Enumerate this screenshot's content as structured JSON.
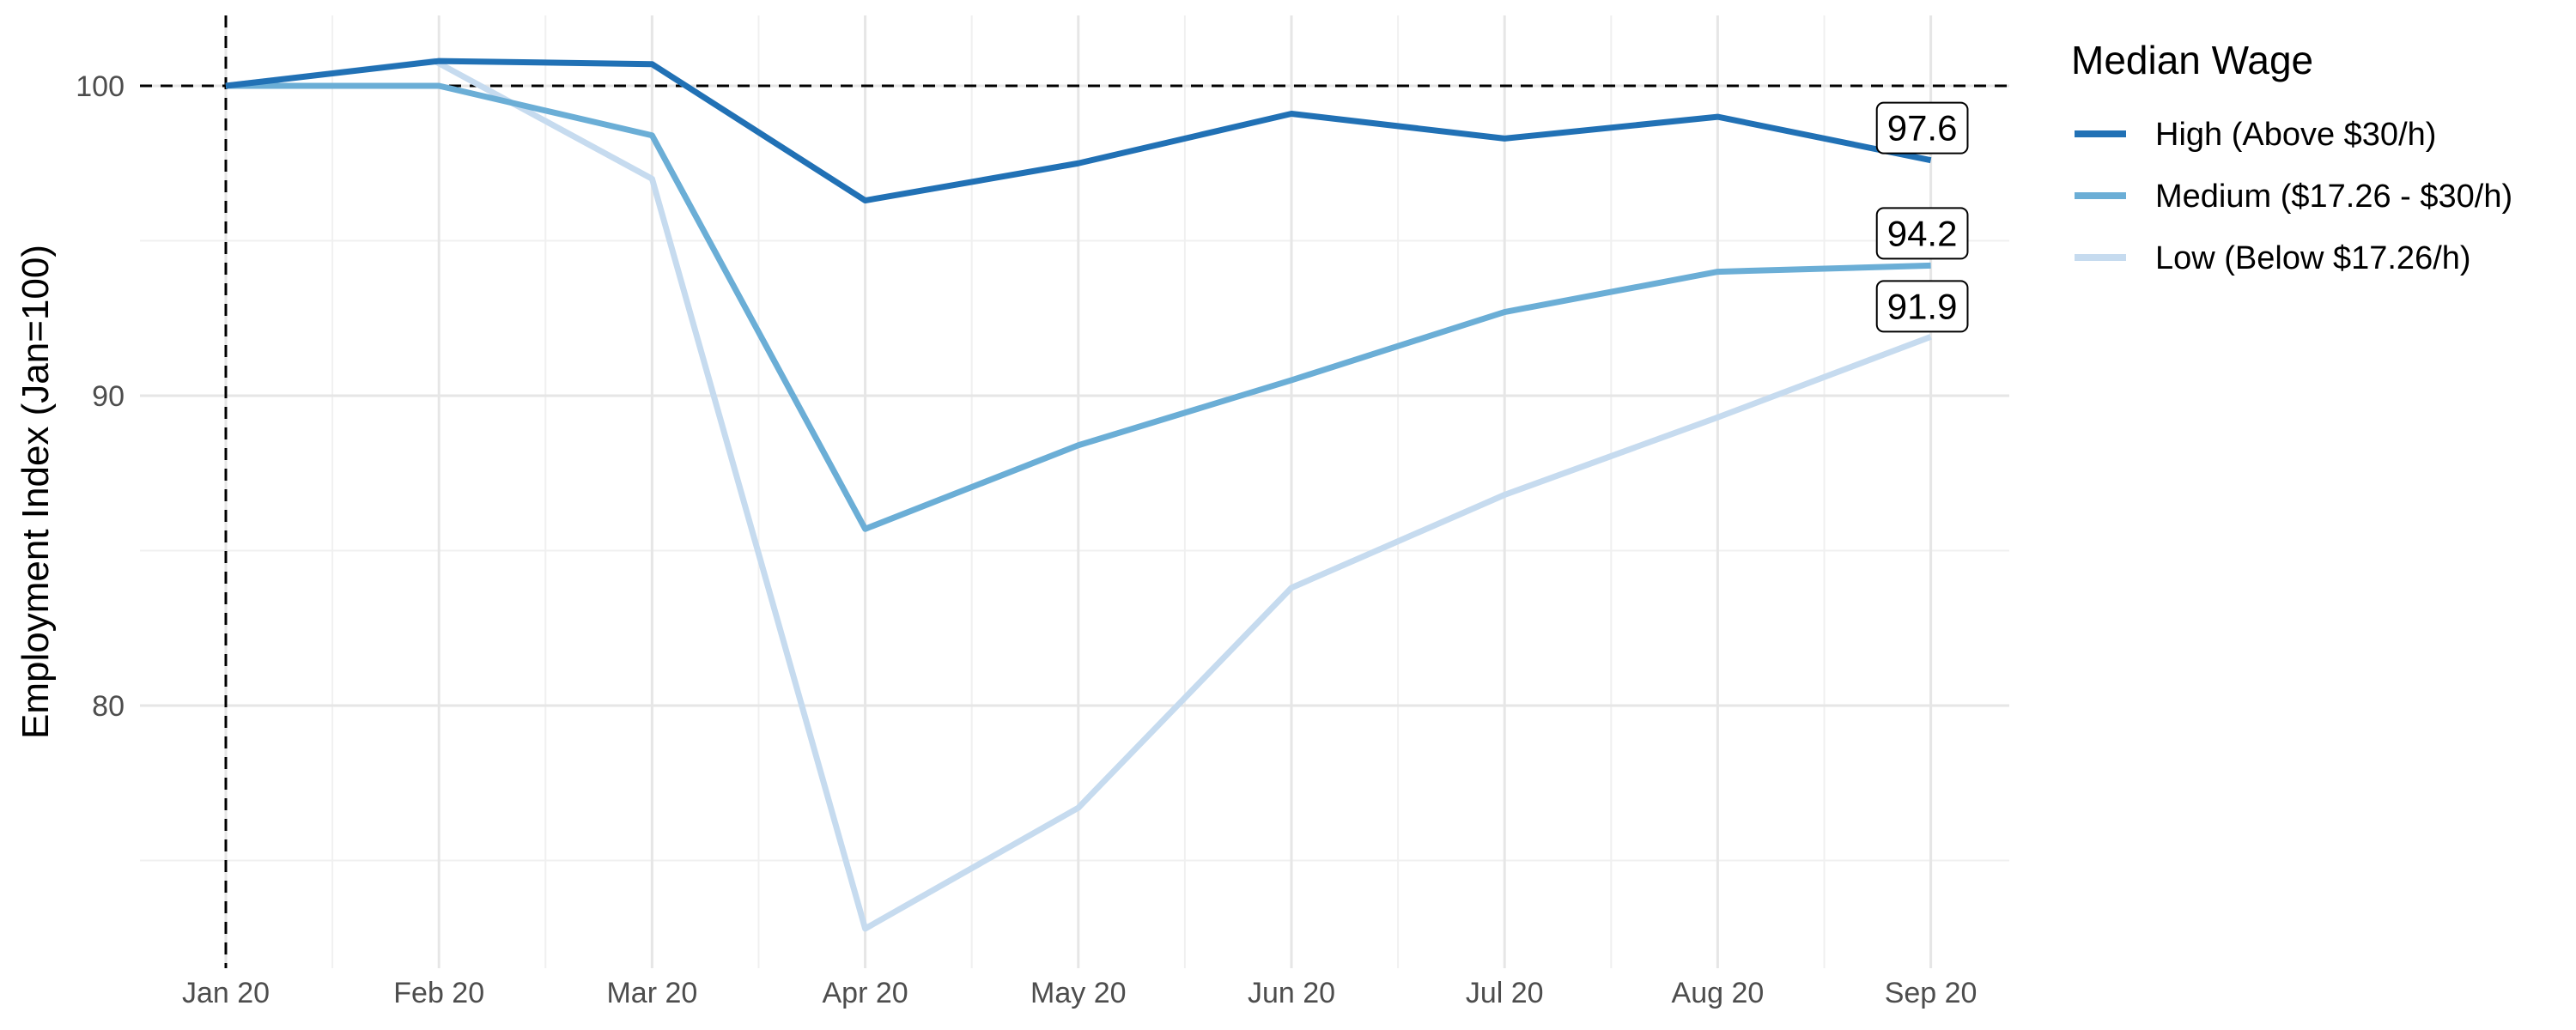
{
  "chart_data": {
    "type": "line",
    "title": "",
    "xlabel": "",
    "ylabel": "Employment Index (Jan=100)",
    "categories": [
      "Jan 20",
      "Feb 20",
      "Mar 20",
      "Apr 20",
      "May 20",
      "Jun 20",
      "Jul 20",
      "Aug 20",
      "Sep 20"
    ],
    "y_ticks": [
      80,
      90,
      100
    ],
    "ylim": [
      71.5,
      102.2
    ],
    "grid": true,
    "legend": {
      "title": "Median Wage",
      "placement": "right"
    },
    "reference_lines": {
      "horizontal_y": 100,
      "vertical_x": "Jan 20",
      "style": "dashed"
    },
    "series": [
      {
        "name": "High (Above $30/h)",
        "color": "#2171b5",
        "x": [
          0,
          1,
          2,
          3,
          4,
          5,
          6,
          7,
          8
        ],
        "values": [
          100.0,
          100.8,
          100.7,
          96.3,
          97.5,
          99.1,
          98.3,
          99.0,
          97.6
        ],
        "end_label": "97.6"
      },
      {
        "name": "Medium ($17.26 - $30/h)",
        "color": "#6baed6",
        "x": [
          0,
          1,
          2,
          3,
          4,
          5,
          6,
          7,
          8
        ],
        "values": [
          100.0,
          100.0,
          98.4,
          85.7,
          88.4,
          90.5,
          92.7,
          94.0,
          94.2
        ],
        "end_label": "94.2"
      },
      {
        "name": "Low (Below $17.26/h)",
        "color": "#c6dbef",
        "x": [
          0,
          0.98,
          2,
          3,
          4,
          5,
          6,
          7,
          8
        ],
        "values": [
          100.0,
          100.8,
          97.0,
          72.8,
          76.7,
          83.8,
          86.8,
          89.3,
          91.9
        ],
        "end_label": "91.9"
      }
    ]
  }
}
